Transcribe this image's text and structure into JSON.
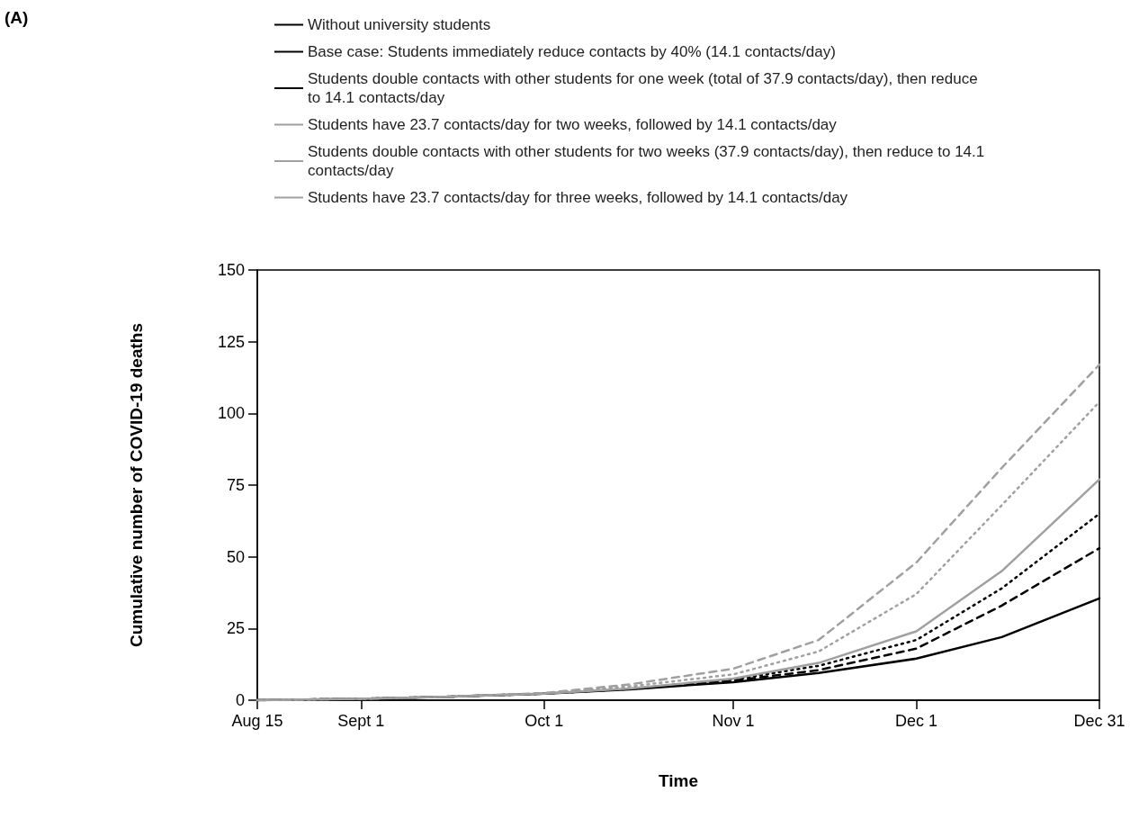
{
  "chart_data": {
    "type": "line",
    "xlabel": "Time",
    "ylabel": "Cumulative number of COVID-19 deaths",
    "annotations": [
      "(A)"
    ],
    "x": [
      "--08-15",
      "--09-01",
      "--09-15",
      "--10-01",
      "--10-15",
      "--11-01",
      "--11-15",
      "--12-01",
      "--12-15",
      "--12-31"
    ],
    "xlim": [
      "--08-15",
      "--12-31"
    ],
    "xticks": [
      {
        "value": "--08-15",
        "label": "Aug 15"
      },
      {
        "value": "--09-01",
        "label": "Sept 1"
      },
      {
        "value": "--10-01",
        "label": "Oct 1"
      },
      {
        "value": "--11-01",
        "label": "Nov 1"
      },
      {
        "value": "--12-01",
        "label": "Dec 1"
      },
      {
        "value": "--12-31",
        "label": "Dec 31"
      }
    ],
    "ylim": [
      0,
      150
    ],
    "yticks": [
      0,
      25,
      50,
      75,
      100,
      125,
      150
    ],
    "grid": false,
    "legend": "top",
    "marker": "none",
    "series": [
      {
        "name": "Without university students",
        "color": "#000000",
        "line_style": "solid",
        "values": [
          0,
          0.5,
          1.2,
          2.3,
          3.8,
          6.3,
          9.5,
          14.5,
          22,
          35.5
        ]
      },
      {
        "name": "Base case: Students immediately reduce contacts by 40% (14.1 contacts/day)",
        "color": "#000000",
        "line_style": "dashed",
        "values": [
          0,
          0.5,
          1.2,
          2.3,
          3.9,
          6.8,
          10.5,
          18,
          33,
          53
        ]
      },
      {
        "name": "Students double contacts with other students for one week (total of 37.9 contacts/day), then reduce to 14.1 contacts/day",
        "color": "#000000",
        "line_style": "dotted",
        "values": [
          0,
          0.5,
          1.2,
          2.3,
          4,
          7.2,
          12,
          21,
          39,
          65
        ]
      },
      {
        "name": "Students have 23.7 contacts/day for two weeks, followed by 14.1 contacts/day",
        "color": "#a0a0a0",
        "line_style": "solid",
        "values": [
          0,
          0.5,
          1.2,
          2.3,
          4.1,
          7.5,
          13,
          24,
          45,
          77
        ]
      },
      {
        "name": "Students double contacts with other students for two weeks (37.9 contacts/day), then reduce to 14.1 contacts/day",
        "color": "#a0a0a0",
        "line_style": "dashed",
        "values": [
          0,
          0.5,
          1.2,
          2.5,
          5.5,
          11,
          21,
          48,
          81,
          117
        ]
      },
      {
        "name": "Students have 23.7 contacts/day for three weeks, followed by 14.1 contacts/day",
        "color": "#a0a0a0",
        "line_style": "dotted",
        "values": [
          0,
          0.5,
          1.2,
          2.4,
          4.8,
          9,
          17,
          37,
          68,
          104
        ]
      }
    ]
  }
}
